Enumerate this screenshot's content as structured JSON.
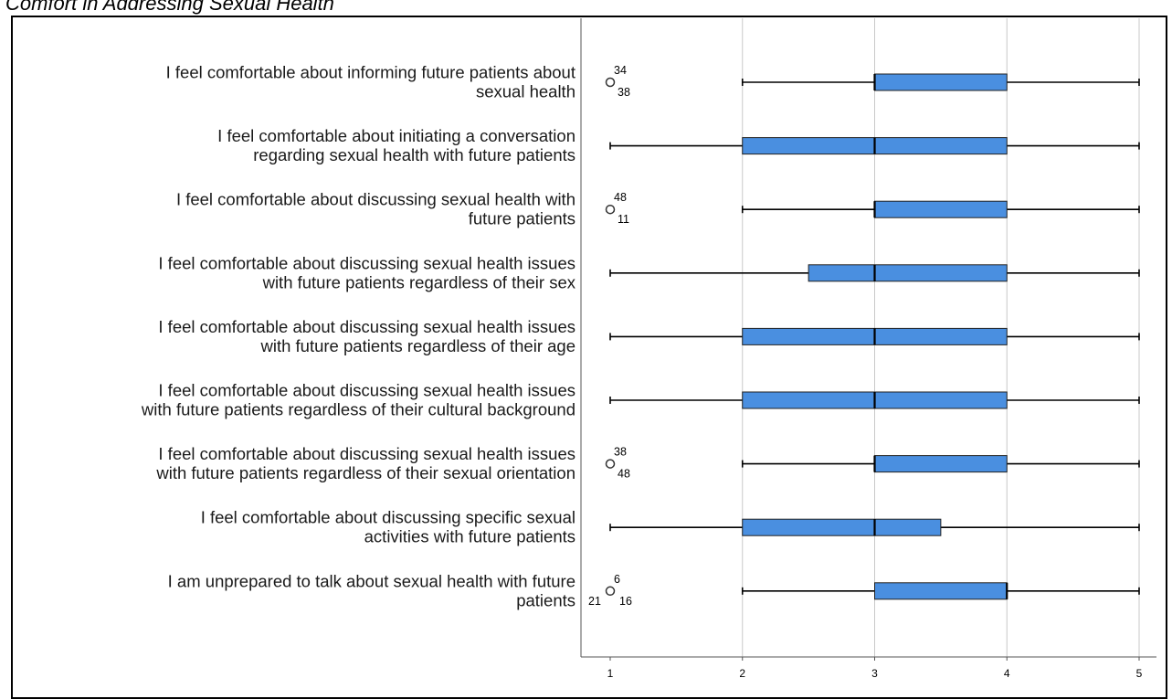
{
  "chart_data": {
    "type": "boxplot",
    "title": "Comfort in Addressing Sexual Health",
    "orientation": "horizontal",
    "xlim": [
      1,
      5
    ],
    "xticks": [
      "1",
      "2",
      "3",
      "4",
      "5"
    ],
    "grid": "vertical",
    "box_color": "#4a8fe0",
    "items": [
      {
        "label": [
          "I feel comfortable about informing future patients about",
          "sexual health"
        ],
        "min": 2,
        "q1": 3,
        "median": 3,
        "q3": 4,
        "max": 5,
        "outliers": [
          {
            "value": 1,
            "ids": [
              "34",
              "38"
            ]
          }
        ]
      },
      {
        "label": [
          "I feel comfortable about initiating a conversation",
          "regarding sexual health with future patients"
        ],
        "min": 1,
        "q1": 2,
        "median": 3,
        "q3": 4,
        "max": 5,
        "outliers": []
      },
      {
        "label": [
          "I feel comfortable about discussing sexual health with",
          "future patients"
        ],
        "min": 2,
        "q1": 3,
        "median": 3,
        "q3": 4,
        "max": 5,
        "outliers": [
          {
            "value": 1,
            "ids": [
              "48",
              "11"
            ]
          }
        ]
      },
      {
        "label": [
          "I feel comfortable about discussing sexual health issues",
          "with future patients regardless of their sex"
        ],
        "min": 1,
        "q1": 2.5,
        "median": 3,
        "q3": 4,
        "max": 5,
        "outliers": []
      },
      {
        "label": [
          "I feel comfortable about discussing sexual health issues",
          "with future patients regardless of their age"
        ],
        "min": 1,
        "q1": 2,
        "median": 3,
        "q3": 4,
        "max": 5,
        "outliers": []
      },
      {
        "label": [
          "I feel comfortable about discussing sexual health issues",
          "with future patients regardless of their cultural background"
        ],
        "min": 1,
        "q1": 2,
        "median": 3,
        "q3": 4,
        "max": 5,
        "outliers": []
      },
      {
        "label": [
          "I feel comfortable about discussing sexual health issues",
          "with future patients regardless of their sexual orientation"
        ],
        "min": 2,
        "q1": 3,
        "median": 3,
        "q3": 4,
        "max": 5,
        "outliers": [
          {
            "value": 1,
            "ids": [
              "38",
              "48"
            ]
          }
        ]
      },
      {
        "label": [
          "I feel comfortable about discussing specific sexual",
          "activities with future patients"
        ],
        "min": 1,
        "q1": 2,
        "median": 3,
        "q3": 3.5,
        "max": 5,
        "outliers": []
      },
      {
        "label": [
          "I am unprepared to talk about sexual health with future",
          "patients"
        ],
        "min": 2,
        "q1": 3,
        "median": 4,
        "q3": 4,
        "max": 5,
        "outliers": [
          {
            "value": 1,
            "ids": [
              "6",
              "21",
              "16"
            ]
          }
        ]
      }
    ]
  }
}
